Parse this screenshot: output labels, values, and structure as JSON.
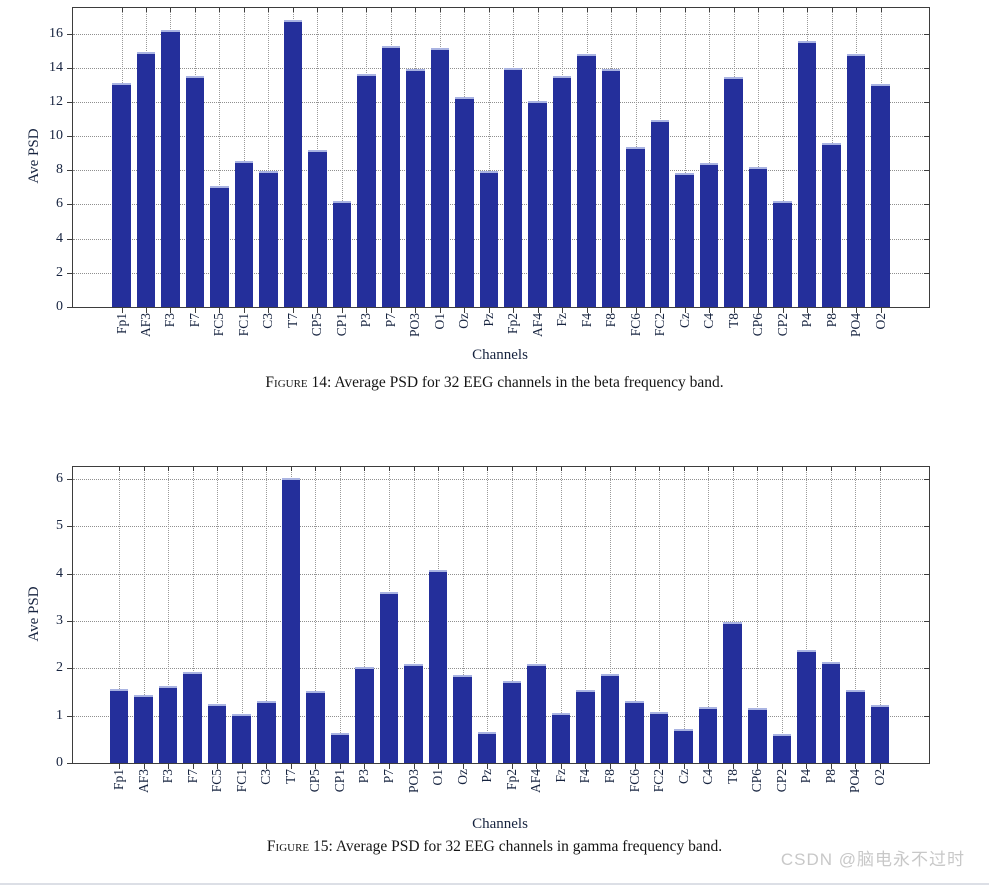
{
  "page": {
    "watermark": "CSDN @脑电永不过时"
  },
  "figures": [
    {
      "caption_label": "Figure",
      "caption_number": "14:",
      "caption_text": "Average PSD for 32 EEG channels in the beta frequency band."
    },
    {
      "caption_label": "Figure",
      "caption_number": "15:",
      "caption_text": "Average PSD for 32 EEG channels in gamma frequency band."
    }
  ],
  "chart_data": [
    {
      "type": "bar",
      "title": "Average PSD for 32 EEG channels in the beta frequency band",
      "xlabel": "Channels",
      "ylabel": "Ave PSD",
      "categories": [
        "Fp1",
        "AF3",
        "F3",
        "F7",
        "FC5",
        "FC1",
        "C3",
        "T7",
        "CP5",
        "CP1",
        "P3",
        "P7",
        "PO3",
        "O1",
        "Oz",
        "Pz",
        "Fp2",
        "AF4",
        "Fz",
        "F4",
        "F8",
        "FC6",
        "FC2",
        "Cz",
        "C4",
        "T8",
        "CP6",
        "CP2",
        "P4",
        "P8",
        "PO4",
        "O2"
      ],
      "values": [
        13.0,
        14.8,
        16.1,
        13.4,
        6.95,
        8.4,
        7.85,
        16.7,
        9.1,
        6.1,
        13.5,
        15.15,
        13.8,
        15.05,
        12.2,
        7.85,
        13.85,
        11.95,
        13.4,
        14.7,
        13.8,
        9.25,
        10.85,
        7.7,
        8.3,
        13.35,
        8.05,
        6.1,
        15.45,
        9.5,
        14.7,
        12.95
      ],
      "ylim": [
        0,
        17.5
      ],
      "yticks": [
        0,
        2,
        4,
        6,
        8,
        10,
        12,
        14,
        16
      ],
      "grid": "dotted",
      "bar_color": "#242f9b"
    },
    {
      "type": "bar",
      "title": "Average PSD for 32 EEG channels in gamma frequency band",
      "xlabel": "Channels",
      "ylabel": "Ave PSD",
      "categories": [
        "Fp1",
        "AF3",
        "F3",
        "F7",
        "FC5",
        "FC1",
        "C3",
        "T7",
        "CP5",
        "CP1",
        "P3",
        "P7",
        "PO3",
        "O1",
        "Oz",
        "Pz",
        "Fp2",
        "AF4",
        "Fz",
        "F4",
        "F8",
        "FC6",
        "FC2",
        "Cz",
        "C4",
        "T8",
        "CP6",
        "CP2",
        "P4",
        "P8",
        "PO4",
        "O2"
      ],
      "values": [
        1.52,
        1.4,
        1.58,
        1.87,
        1.21,
        1.0,
        1.27,
        5.97,
        1.48,
        0.6,
        1.98,
        3.57,
        2.05,
        4.03,
        1.82,
        0.62,
        1.7,
        2.04,
        1.01,
        1.5,
        1.84,
        1.26,
        1.04,
        0.67,
        1.15,
        2.93,
        1.11,
        0.57,
        2.35,
        2.1,
        1.49,
        1.18
      ],
      "ylim": [
        0,
        6.25
      ],
      "yticks": [
        0,
        1,
        2,
        3,
        4,
        5,
        6
      ],
      "grid": "dotted",
      "bar_color": "#242f9b"
    }
  ]
}
